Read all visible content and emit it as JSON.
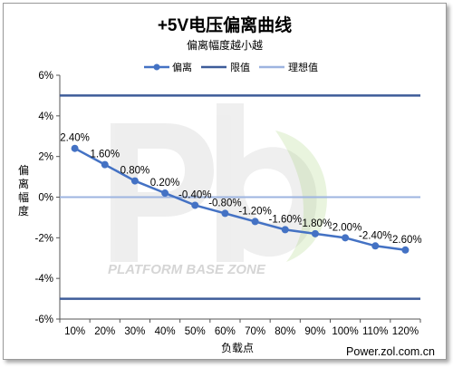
{
  "chart_data": {
    "type": "line",
    "title": "+5V电压偏离曲线",
    "subtitle": "偏离幅度越小越",
    "xlabel": "负载点",
    "ylabel": "偏离幅度",
    "categories": [
      "10%",
      "20%",
      "30%",
      "40%",
      "50%",
      "60%",
      "70%",
      "80%",
      "90%",
      "100%",
      "110%",
      "120%"
    ],
    "ylim": [
      -6,
      6
    ],
    "yticks": [
      -6,
      -4,
      -2,
      0,
      2,
      4,
      6
    ],
    "ytick_labels": [
      "-6%",
      "-4%",
      "-2%",
      "0%",
      "2%",
      "4%",
      "6%"
    ],
    "grid": false,
    "legend_position": "top",
    "series": [
      {
        "name": "偏离",
        "color": "#4472C4",
        "markers": true,
        "values": [
          2.4,
          1.6,
          0.8,
          0.2,
          -0.4,
          -0.8,
          -1.2,
          -1.6,
          -1.8,
          -2.0,
          -2.4,
          -2.6
        ],
        "labels": [
          "2.40%",
          "1.60%",
          "0.80%",
          "0.20%",
          "-0.40%",
          "-0.80%",
          "-1.20%",
          "-1.60%",
          "-1.80%",
          "-2.00%",
          "-2.40%",
          "-2.60%"
        ]
      },
      {
        "name": "限值",
        "color": "#3D5C99",
        "values_upper": 5,
        "values_lower": -5
      },
      {
        "name": "理想值",
        "color": "#9DB4E0",
        "value": 0
      }
    ]
  },
  "watermark": {
    "logo": "Pb",
    "text": "PLATFORM BASE ZONE"
  },
  "footer": {
    "source": "Power.zol.com.cn"
  }
}
